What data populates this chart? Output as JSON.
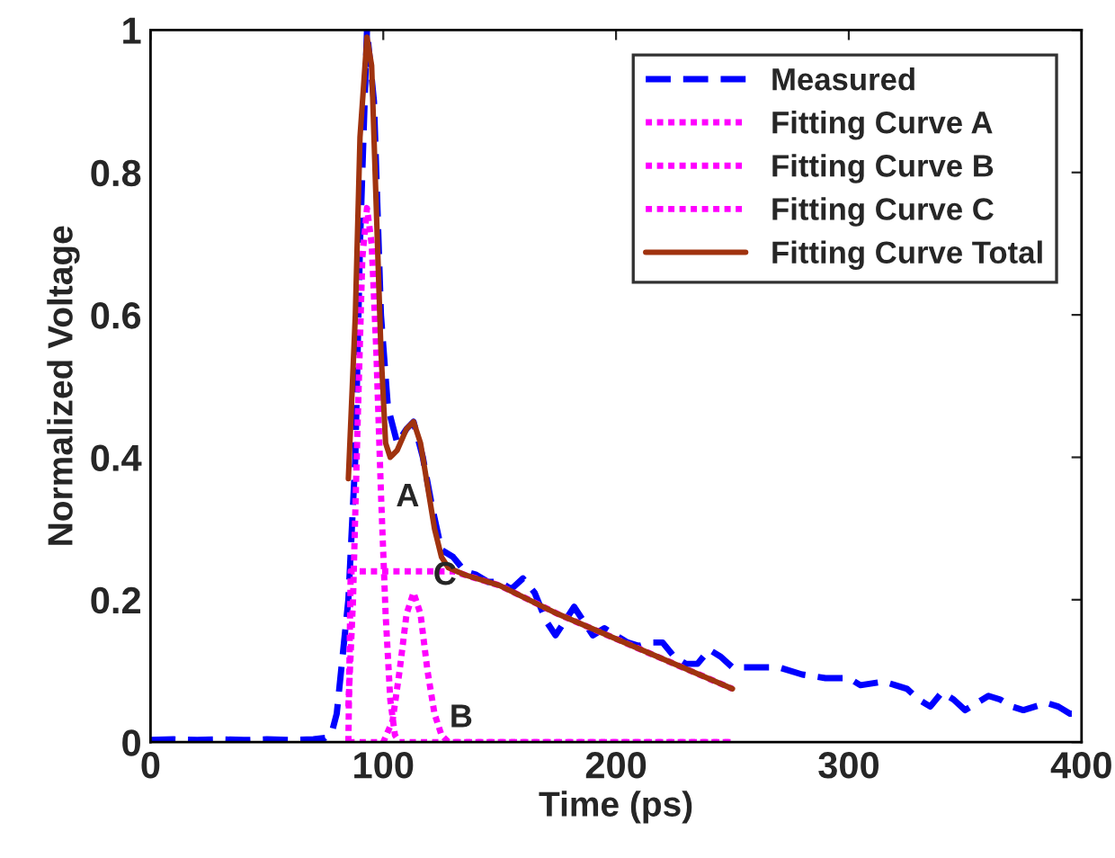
{
  "chart_data": {
    "type": "line",
    "xlabel": "Time (ps)",
    "ylabel": "Normalized Voltage",
    "xlim": [
      0,
      400
    ],
    "ylim": [
      0,
      1
    ],
    "xticks": [
      0,
      100,
      200,
      300,
      400
    ],
    "yticks": [
      0,
      0.2,
      0.4,
      0.6,
      0.8,
      1
    ],
    "grid": false,
    "legend": "top right",
    "marker": "none",
    "series": [
      {
        "name": "Measured",
        "color": "#0000ff",
        "line_style": "dashed",
        "x": [
          0,
          10,
          20,
          30,
          40,
          50,
          60,
          70,
          75,
          78,
          80,
          85,
          88,
          90,
          93,
          96,
          99,
          102,
          106,
          110,
          113,
          117,
          121,
          125,
          130,
          135,
          140,
          145,
          150,
          155,
          160,
          165,
          170,
          174,
          178,
          182,
          186,
          190,
          195,
          200,
          205,
          210,
          215,
          220,
          225,
          230,
          235,
          240,
          245,
          250,
          260,
          270,
          280,
          290,
          300,
          305,
          315,
          320,
          325,
          330,
          335,
          340,
          345,
          350,
          355,
          360,
          365,
          370,
          375,
          380,
          385,
          390,
          395,
          400
        ],
        "values": [
          0.003,
          0.004,
          0.003,
          0.004,
          0.003,
          0.004,
          0.003,
          0.004,
          0.006,
          0.015,
          0.04,
          0.2,
          0.4,
          0.7,
          1.0,
          0.9,
          0.6,
          0.47,
          0.42,
          0.44,
          0.45,
          0.4,
          0.33,
          0.27,
          0.26,
          0.24,
          0.235,
          0.225,
          0.225,
          0.215,
          0.23,
          0.21,
          0.17,
          0.15,
          0.17,
          0.19,
          0.17,
          0.15,
          0.16,
          0.15,
          0.14,
          0.135,
          0.14,
          0.14,
          0.12,
          0.11,
          0.11,
          0.13,
          0.12,
          0.105,
          0.105,
          0.105,
          0.095,
          0.09,
          0.09,
          0.08,
          0.085,
          0.08,
          0.075,
          0.06,
          0.05,
          0.07,
          0.06,
          0.045,
          0.055,
          0.065,
          0.06,
          0.05,
          0.045,
          0.05,
          0.055,
          0.05,
          0.04,
          0.04
        ]
      },
      {
        "name": "Fitting Curve A",
        "color": "#ff00ff",
        "line_style": "dotted",
        "x": [
          85,
          87,
          89,
          91,
          93,
          95,
          97,
          99,
          101,
          103,
          105,
          107,
          250
        ],
        "values": [
          0.05,
          0.2,
          0.45,
          0.68,
          0.75,
          0.7,
          0.55,
          0.35,
          0.18,
          0.06,
          0.01,
          0,
          0
        ]
      },
      {
        "name": "Fitting Curve B",
        "color": "#ff00ff",
        "line_style": "dotted",
        "x": [
          85,
          100,
          104,
          107,
          110,
          113,
          116,
          119,
          122,
          125,
          128,
          250
        ],
        "values": [
          0,
          0,
          0.03,
          0.1,
          0.18,
          0.21,
          0.18,
          0.1,
          0.04,
          0.01,
          0,
          0
        ]
      },
      {
        "name": "Fitting Curve C",
        "color": "#ff00ff",
        "line_style": "dotted",
        "x": [
          85,
          86,
          100,
          125,
          130,
          150,
          175,
          200,
          225,
          250
        ],
        "values": [
          0,
          0.24,
          0.24,
          0.24,
          0.24,
          0.22,
          0.18,
          0.145,
          0.11,
          0.075
        ]
      },
      {
        "name": "Fitting Curve Total",
        "color": "#a0330f",
        "line_style": "solid",
        "x": [
          85,
          88,
          90,
          93,
          95,
          97,
          99,
          101,
          103,
          106,
          110,
          113,
          116,
          119,
          122,
          125,
          128,
          135,
          150,
          175,
          200,
          225,
          250
        ],
        "values": [
          0.37,
          0.6,
          0.85,
          0.99,
          0.95,
          0.75,
          0.55,
          0.42,
          0.4,
          0.41,
          0.44,
          0.45,
          0.42,
          0.36,
          0.3,
          0.26,
          0.245,
          0.235,
          0.22,
          0.18,
          0.145,
          0.11,
          0.075
        ]
      }
    ],
    "annotations": [
      {
        "text": "A",
        "x": 99,
        "y": 0.35
      },
      {
        "text": "C",
        "x": 115,
        "y": 0.24
      },
      {
        "text": "B",
        "x": 122,
        "y": 0.04
      }
    ]
  }
}
